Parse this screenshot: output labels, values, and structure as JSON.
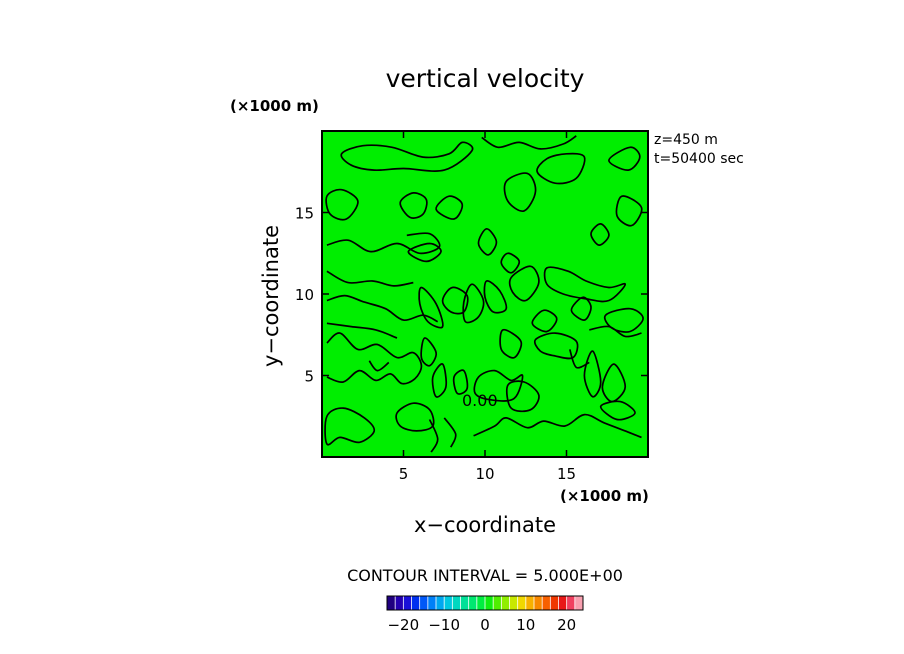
{
  "chart_data": {
    "type": "contour",
    "title": "vertical velocity",
    "xlabel": "x−coordinate",
    "ylabel": "y−coordinate",
    "x_unit": "(×1000 m)",
    "y_unit": "(×1000 m)",
    "xlim": [
      0,
      20
    ],
    "ylim": [
      0,
      20
    ],
    "x_ticks": [
      5,
      10,
      15
    ],
    "y_ticks": [
      5,
      10,
      15
    ],
    "info_lines": [
      "z=450 m",
      "t=50400 sec"
    ],
    "contour_label": "0.00",
    "contour_interval_text": "CONTOUR INTERVAL = 5.000E+00",
    "fill_color": "#00ee00",
    "colorbar": {
      "ticks": [
        "−20",
        "−10",
        "0",
        "10",
        "20"
      ],
      "colors": [
        "#200080",
        "#2400b0",
        "#1a10d8",
        "#0030f0",
        "#0058f8",
        "#0080f8",
        "#00a8f0",
        "#00c8e0",
        "#00d8c0",
        "#00e098",
        "#00e870",
        "#00ee40",
        "#10ee10",
        "#50ee00",
        "#90ee00",
        "#c8e800",
        "#f0d800",
        "#f8b000",
        "#f88800",
        "#f86000",
        "#f03800",
        "#e81818",
        "#f04060",
        "#f8a0b0"
      ]
    },
    "contours": [
      [
        [
          1.2,
          18.6
        ],
        [
          2.5,
          19.1
        ],
        [
          4.3,
          19.0
        ],
        [
          6.2,
          18.4
        ],
        [
          7.8,
          18.6
        ],
        [
          8.6,
          19.3
        ],
        [
          9.2,
          18.8
        ],
        [
          7.5,
          17.6
        ],
        [
          5.0,
          17.7
        ],
        [
          3.2,
          17.6
        ],
        [
          1.8,
          17.9
        ]
      ],
      [
        [
          9.8,
          19.6
        ],
        [
          10.8,
          19.0
        ],
        [
          12.1,
          19.3
        ],
        [
          13.4,
          18.9
        ],
        [
          14.8,
          19.2
        ],
        [
          15.6,
          19.7
        ]
      ],
      [
        [
          17.6,
          18.2
        ],
        [
          18.9,
          19.0
        ],
        [
          19.5,
          18.4
        ],
        [
          18.8,
          17.6
        ]
      ],
      [
        [
          16.1,
          18.4
        ],
        [
          15.6,
          17.1
        ],
        [
          14.3,
          16.8
        ],
        [
          13.2,
          17.5
        ],
        [
          13.8,
          18.3
        ],
        [
          15.0,
          18.6
        ]
      ],
      [
        [
          11.3,
          16.9
        ],
        [
          12.6,
          17.4
        ],
        [
          13.1,
          16.3
        ],
        [
          12.4,
          15.1
        ],
        [
          11.4,
          15.7
        ]
      ],
      [
        [
          4.8,
          15.6
        ],
        [
          5.6,
          16.2
        ],
        [
          6.4,
          15.8
        ],
        [
          6.2,
          14.9
        ],
        [
          5.4,
          14.7
        ]
      ],
      [
        [
          7.0,
          15.2
        ],
        [
          7.8,
          16.0
        ],
        [
          8.6,
          15.5
        ],
        [
          8.1,
          14.6
        ]
      ],
      [
        [
          0.3,
          16.0
        ],
        [
          1.2,
          16.4
        ],
        [
          2.2,
          15.7
        ],
        [
          1.5,
          14.6
        ],
        [
          0.5,
          14.9
        ]
      ],
      [
        [
          0.3,
          13.0
        ],
        [
          1.6,
          13.3
        ],
        [
          3.0,
          12.6
        ],
        [
          4.6,
          13.1
        ],
        [
          6.0,
          12.5
        ],
        [
          7.2,
          12.9
        ],
        [
          6.6,
          13.7
        ],
        [
          5.2,
          13.6
        ]
      ],
      [
        [
          5.3,
          12.6
        ],
        [
          6.6,
          13.1
        ],
        [
          7.3,
          12.6
        ],
        [
          6.4,
          12.0
        ]
      ],
      [
        [
          18.4,
          16.0
        ],
        [
          19.6,
          15.3
        ],
        [
          19.0,
          14.2
        ],
        [
          18.1,
          14.8
        ]
      ],
      [
        [
          17.1,
          14.3
        ],
        [
          17.6,
          13.6
        ],
        [
          17.0,
          13.0
        ],
        [
          16.5,
          13.7
        ]
      ],
      [
        [
          10.1,
          14.0
        ],
        [
          10.7,
          13.2
        ],
        [
          10.2,
          12.4
        ],
        [
          9.6,
          13.1
        ]
      ],
      [
        [
          11.4,
          12.5
        ],
        [
          12.1,
          12.0
        ],
        [
          11.6,
          11.3
        ],
        [
          11.0,
          11.9
        ]
      ],
      [
        [
          0.3,
          11.4
        ],
        [
          1.6,
          10.7
        ],
        [
          3.1,
          10.8
        ],
        [
          4.4,
          10.5
        ],
        [
          5.6,
          10.7
        ]
      ],
      [
        [
          0.3,
          9.6
        ],
        [
          1.4,
          9.9
        ],
        [
          2.6,
          9.5
        ],
        [
          3.9,
          9.1
        ],
        [
          5.0,
          8.4
        ],
        [
          6.2,
          8.7
        ],
        [
          7.1,
          8.3
        ]
      ],
      [
        [
          0.3,
          8.2
        ],
        [
          1.8,
          8.0
        ],
        [
          3.3,
          7.8
        ],
        [
          4.6,
          7.3
        ]
      ],
      [
        [
          6.1,
          10.4
        ],
        [
          7.0,
          9.4
        ],
        [
          7.4,
          8.0
        ],
        [
          6.5,
          8.3
        ],
        [
          6.0,
          9.4
        ]
      ],
      [
        [
          7.4,
          9.6
        ],
        [
          8.0,
          10.4
        ],
        [
          8.9,
          9.9
        ],
        [
          8.7,
          8.9
        ],
        [
          7.9,
          8.9
        ]
      ],
      [
        [
          9.2,
          10.6
        ],
        [
          9.9,
          9.6
        ],
        [
          9.6,
          8.6
        ],
        [
          8.8,
          8.3
        ],
        [
          8.7,
          9.5
        ]
      ],
      [
        [
          10.1,
          10.8
        ],
        [
          10.9,
          10.2
        ],
        [
          11.3,
          9.1
        ],
        [
          10.5,
          8.9
        ],
        [
          10.0,
          9.8
        ]
      ],
      [
        [
          11.6,
          11.0
        ],
        [
          12.8,
          11.7
        ],
        [
          13.3,
          10.7
        ],
        [
          12.5,
          9.6
        ],
        [
          11.7,
          10.1
        ]
      ],
      [
        [
          13.8,
          11.6
        ],
        [
          15.1,
          11.4
        ],
        [
          16.2,
          10.8
        ],
        [
          17.6,
          10.4
        ],
        [
          18.6,
          10.6
        ],
        [
          17.6,
          9.6
        ],
        [
          16.2,
          9.7
        ],
        [
          14.8,
          10.0
        ],
        [
          13.8,
          10.6
        ]
      ],
      [
        [
          12.9,
          8.2
        ],
        [
          13.6,
          9.0
        ],
        [
          14.4,
          8.5
        ],
        [
          13.8,
          7.7
        ]
      ],
      [
        [
          15.3,
          9.0
        ],
        [
          16.0,
          9.8
        ],
        [
          16.5,
          9.2
        ],
        [
          16.1,
          8.4
        ]
      ],
      [
        [
          17.4,
          8.7
        ],
        [
          18.9,
          9.1
        ],
        [
          19.7,
          8.5
        ],
        [
          18.9,
          7.7
        ],
        [
          17.8,
          7.9
        ]
      ],
      [
        [
          16.4,
          7.8
        ],
        [
          17.6,
          8.0
        ],
        [
          18.6,
          7.4
        ],
        [
          19.6,
          7.6
        ]
      ],
      [
        [
          11.1,
          7.8
        ],
        [
          12.2,
          7.1
        ],
        [
          11.8,
          6.1
        ],
        [
          11.0,
          6.6
        ]
      ],
      [
        [
          13.1,
          7.2
        ],
        [
          14.3,
          7.6
        ],
        [
          15.6,
          7.1
        ],
        [
          15.4,
          6.1
        ],
        [
          14.3,
          6.2
        ],
        [
          13.4,
          6.5
        ]
      ],
      [
        [
          15.2,
          6.6
        ],
        [
          15.6,
          5.5
        ],
        [
          16.4,
          5.8
        ]
      ],
      [
        [
          16.6,
          6.5
        ],
        [
          16.1,
          5.0
        ],
        [
          16.6,
          3.7
        ],
        [
          17.1,
          4.6
        ]
      ],
      [
        [
          17.9,
          5.7
        ],
        [
          17.2,
          4.3
        ],
        [
          17.8,
          3.4
        ],
        [
          18.6,
          4.3
        ]
      ],
      [
        [
          0.3,
          7.0
        ],
        [
          1.1,
          7.6
        ],
        [
          2.2,
          6.6
        ],
        [
          3.4,
          6.9
        ],
        [
          4.6,
          6.1
        ],
        [
          5.6,
          6.4
        ],
        [
          6.1,
          5.6
        ],
        [
          5.7,
          4.8
        ],
        [
          4.9,
          4.5
        ],
        [
          4.2,
          5.1
        ],
        [
          3.3,
          4.7
        ],
        [
          2.3,
          5.3
        ],
        [
          1.3,
          4.6
        ],
        [
          0.3,
          4.9
        ]
      ],
      [
        [
          2.9,
          5.9
        ],
        [
          3.4,
          5.3
        ],
        [
          4.1,
          5.8
        ]
      ],
      [
        [
          6.3,
          7.3
        ],
        [
          7.0,
          6.4
        ],
        [
          6.6,
          5.6
        ],
        [
          6.1,
          6.1
        ]
      ],
      [
        [
          7.4,
          5.7
        ],
        [
          7.6,
          4.3
        ],
        [
          7.0,
          3.7
        ],
        [
          6.8,
          4.9
        ]
      ],
      [
        [
          8.7,
          5.3
        ],
        [
          8.9,
          4.2
        ],
        [
          8.3,
          3.9
        ],
        [
          8.1,
          4.9
        ]
      ],
      [
        [
          9.6,
          4.9
        ],
        [
          10.6,
          5.3
        ],
        [
          11.6,
          4.7
        ],
        [
          12.3,
          5.0
        ],
        [
          11.8,
          3.6
        ],
        [
          10.4,
          3.5
        ],
        [
          9.4,
          3.9
        ]
      ],
      [
        [
          11.4,
          4.4
        ],
        [
          12.4,
          4.6
        ],
        [
          13.3,
          3.8
        ],
        [
          12.8,
          2.9
        ],
        [
          11.6,
          3.0
        ]
      ],
      [
        [
          9.3,
          1.3
        ],
        [
          10.6,
          1.9
        ],
        [
          11.3,
          2.4
        ],
        [
          12.6,
          1.8
        ],
        [
          13.6,
          2.2
        ],
        [
          14.9,
          1.9
        ],
        [
          16.1,
          2.6
        ],
        [
          17.3,
          2.1
        ],
        [
          18.6,
          1.6
        ],
        [
          19.6,
          1.2
        ]
      ],
      [
        [
          17.1,
          3.1
        ],
        [
          18.3,
          3.4
        ],
        [
          19.2,
          2.7
        ],
        [
          18.1,
          2.3
        ]
      ],
      [
        [
          0.3,
          2.5
        ],
        [
          1.3,
          3.0
        ],
        [
          2.6,
          2.4
        ],
        [
          3.2,
          1.6
        ],
        [
          2.3,
          0.9
        ],
        [
          1.1,
          1.2
        ],
        [
          0.3,
          0.8
        ]
      ],
      [
        [
          4.6,
          2.7
        ],
        [
          5.6,
          3.3
        ],
        [
          6.6,
          2.9
        ],
        [
          6.8,
          1.9
        ],
        [
          5.8,
          1.6
        ],
        [
          4.8,
          1.9
        ]
      ],
      [
        [
          6.6,
          2.3
        ],
        [
          7.1,
          1.1
        ],
        [
          6.7,
          0.3
        ]
      ],
      [
        [
          7.5,
          2.4
        ],
        [
          8.2,
          1.4
        ],
        [
          7.9,
          0.6
        ]
      ]
    ]
  }
}
